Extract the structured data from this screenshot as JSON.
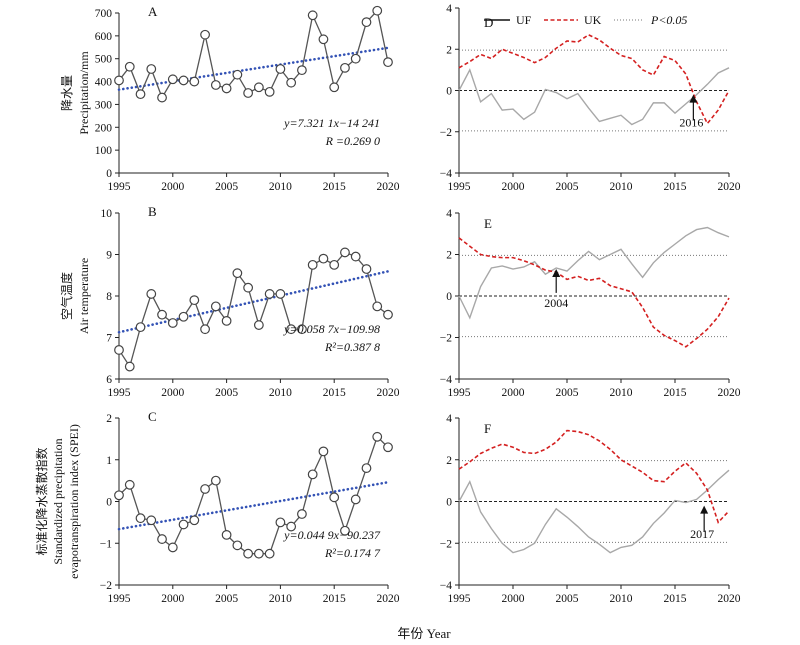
{
  "figure": {
    "common_xlabel": "年份 Year"
  },
  "chart_data": [
    {
      "id": "A",
      "type": "scatter",
      "letter": "A",
      "ylabel_cn": "降水量",
      "ylabel_en": "Precipitation/mm",
      "xlim": [
        1995,
        2020
      ],
      "ylim": [
        0,
        700
      ],
      "xticks": [
        1995,
        2000,
        2005,
        2010,
        2015,
        2020
      ],
      "yticks": [
        0,
        100,
        200,
        300,
        400,
        500,
        600,
        700
      ],
      "series": [
        {
          "x": [
            1995,
            1996,
            1997,
            1998,
            1999,
            2000,
            2001,
            2002,
            2003,
            2004,
            2005,
            2006,
            2007,
            2008,
            2009,
            2010,
            2011,
            2012,
            2013,
            2014,
            2015,
            2016,
            2017,
            2018,
            2019,
            2020
          ],
          "values": [
            405,
            465,
            345,
            455,
            330,
            410,
            405,
            400,
            605,
            385,
            370,
            430,
            350,
            375,
            355,
            455,
            395,
            450,
            690,
            585,
            375,
            460,
            500,
            660,
            710,
            485
          ]
        }
      ],
      "trend": {
        "slope": 7.3211,
        "intercept": -14241
      },
      "equation": "y=7.321 1x−14 241",
      "r_text": "R =0.269 0"
    },
    {
      "id": "B",
      "type": "scatter",
      "letter": "B",
      "ylabel_cn": "空气温度",
      "ylabel_en": "Air temperature",
      "xlim": [
        1995,
        2020
      ],
      "ylim": [
        6,
        10
      ],
      "xticks": [
        1995,
        2000,
        2005,
        2010,
        2015,
        2020
      ],
      "yticks": [
        6,
        7,
        8,
        9,
        10
      ],
      "series": [
        {
          "x": [
            1995,
            1996,
            1997,
            1998,
            1999,
            2000,
            2001,
            2002,
            2003,
            2004,
            2005,
            2006,
            2007,
            2008,
            2009,
            2010,
            2011,
            2012,
            2013,
            2014,
            2015,
            2016,
            2017,
            2018,
            2019,
            2020
          ],
          "values": [
            6.7,
            6.3,
            7.25,
            8.05,
            7.55,
            7.35,
            7.5,
            7.9,
            7.2,
            7.75,
            7.4,
            8.55,
            8.2,
            7.3,
            8.05,
            8.05,
            7.2,
            7.2,
            8.75,
            8.9,
            8.75,
            9.05,
            8.95,
            8.65,
            7.75,
            7.55
          ]
        }
      ],
      "trend": {
        "slope": 0.0587,
        "intercept": -109.98
      },
      "equation": "y=0.058 7x−109.98",
      "r_text": "R²=0.387 8"
    },
    {
      "id": "C",
      "type": "scatter",
      "letter": "C",
      "ylabel_cn": "标准化降水蒸散指数",
      "ylabel_en1": "Standardized precipitation",
      "ylabel_en2": "evapotranspiration index (SPEI)",
      "xlim": [
        1995,
        2020
      ],
      "ylim": [
        -2,
        2
      ],
      "xticks": [
        1995,
        2000,
        2005,
        2010,
        2015,
        2020
      ],
      "yticks": [
        -2,
        -1,
        0,
        1,
        2
      ],
      "series": [
        {
          "x": [
            1995,
            1996,
            1997,
            1998,
            1999,
            2000,
            2001,
            2002,
            2003,
            2004,
            2005,
            2006,
            2007,
            2008,
            2009,
            2010,
            2011,
            2012,
            2013,
            2014,
            2015,
            2016,
            2017,
            2018,
            2019,
            2020
          ],
          "values": [
            0.15,
            0.4,
            -0.4,
            -0.45,
            -0.9,
            -1.1,
            -0.55,
            -0.45,
            0.3,
            0.5,
            -0.8,
            -1.05,
            -1.25,
            -1.25,
            -1.25,
            -0.5,
            -0.6,
            -0.3,
            0.65,
            1.2,
            0.1,
            -0.7,
            0.05,
            0.8,
            1.55,
            1.3
          ]
        }
      ],
      "trend": {
        "slope": 0.0449,
        "intercept": -90.237
      },
      "equation": "y=0.044 9x−90.237",
      "r_text": "R²=0.174 7"
    },
    {
      "id": "D",
      "type": "line",
      "letter": "D",
      "legend": {
        "uf": "UF",
        "uk": "UK",
        "p": "P<0.05"
      },
      "xlim": [
        1995,
        2020
      ],
      "ylim": [
        -4,
        4
      ],
      "xticks": [
        1995,
        2000,
        2005,
        2010,
        2015,
        2020
      ],
      "yticks": [
        -4,
        -2,
        0,
        2,
        4
      ],
      "x": [
        1995,
        1996,
        1997,
        1998,
        1999,
        2000,
        2001,
        2002,
        2003,
        2004,
        2005,
        2006,
        2007,
        2008,
        2009,
        2010,
        2011,
        2012,
        2013,
        2014,
        2015,
        2016,
        2017,
        2018,
        2019,
        2020
      ],
      "series": [
        {
          "name": "UF",
          "values": [
            0.0,
            1.0,
            -0.55,
            -0.15,
            -0.95,
            -0.9,
            -1.4,
            -1.05,
            0.05,
            -0.1,
            -0.4,
            -0.15,
            -0.85,
            -1.5,
            -1.35,
            -1.2,
            -1.65,
            -1.4,
            -0.6,
            -0.6,
            -1.1,
            -0.65,
            -0.2,
            0.3,
            0.85,
            1.1
          ]
        },
        {
          "name": "UK",
          "values": [
            1.1,
            1.4,
            1.75,
            1.55,
            2.0,
            1.8,
            1.6,
            1.35,
            1.6,
            2.05,
            2.4,
            2.35,
            2.7,
            2.45,
            2.05,
            1.7,
            1.55,
            1.0,
            0.75,
            1.65,
            1.45,
            0.8,
            -0.55,
            -1.6,
            -0.95,
            0.0
          ]
        }
      ],
      "annotation": {
        "text": "2016",
        "year": 2016.7
      }
    },
    {
      "id": "E",
      "type": "line",
      "letter": "E",
      "xlim": [
        1995,
        2020
      ],
      "ylim": [
        -4,
        4
      ],
      "xticks": [
        1995,
        2000,
        2005,
        2010,
        2015,
        2020
      ],
      "yticks": [
        -4,
        -2,
        0,
        2,
        4
      ],
      "x": [
        1995,
        1996,
        1997,
        1998,
        1999,
        2000,
        2001,
        2002,
        2003,
        2004,
        2005,
        2006,
        2007,
        2008,
        2009,
        2010,
        2011,
        2012,
        2013,
        2014,
        2015,
        2016,
        2017,
        2018,
        2019,
        2020
      ],
      "series": [
        {
          "name": "UF",
          "values": [
            0.0,
            -1.05,
            0.45,
            1.35,
            1.45,
            1.3,
            1.4,
            1.65,
            1.05,
            1.35,
            1.2,
            1.7,
            2.15,
            1.75,
            2.0,
            2.25,
            1.55,
            0.9,
            1.6,
            2.1,
            2.5,
            2.9,
            3.2,
            3.3,
            3.05,
            2.85
          ]
        },
        {
          "name": "UK",
          "values": [
            2.8,
            2.4,
            2.0,
            1.9,
            1.85,
            1.85,
            1.7,
            1.5,
            1.25,
            1.15,
            0.8,
            0.95,
            0.75,
            0.85,
            0.5,
            0.35,
            0.2,
            -0.55,
            -1.5,
            -1.9,
            -2.15,
            -2.45,
            -2.05,
            -1.6,
            -1.0,
            -0.1
          ]
        }
      ],
      "annotation": {
        "text": "2004",
        "year": 2004.0
      }
    },
    {
      "id": "F",
      "type": "line",
      "letter": "F",
      "xlim": [
        1995,
        2020
      ],
      "ylim": [
        -4,
        4
      ],
      "xticks": [
        1995,
        2000,
        2005,
        2010,
        2015,
        2020
      ],
      "yticks": [
        -4,
        -2,
        0,
        2,
        4
      ],
      "x": [
        1995,
        1996,
        1997,
        1998,
        1999,
        2000,
        2001,
        2002,
        2003,
        2004,
        2005,
        2006,
        2007,
        2008,
        2009,
        2010,
        2011,
        2012,
        2013,
        2014,
        2015,
        2016,
        2017,
        2018,
        2019,
        2020
      ],
      "series": [
        {
          "name": "UF",
          "values": [
            0.0,
            0.95,
            -0.5,
            -1.3,
            -2.0,
            -2.45,
            -2.3,
            -2.0,
            -1.1,
            -0.35,
            -0.75,
            -1.2,
            -1.7,
            -2.05,
            -2.45,
            -2.2,
            -2.1,
            -1.7,
            -1.05,
            -0.55,
            0.05,
            -0.05,
            0.1,
            0.55,
            1.05,
            1.5
          ]
        },
        {
          "name": "UK",
          "values": [
            1.55,
            1.9,
            2.3,
            2.55,
            2.75,
            2.6,
            2.35,
            2.3,
            2.5,
            2.85,
            3.4,
            3.35,
            3.2,
            2.9,
            2.5,
            2.0,
            1.7,
            1.4,
            1.0,
            0.95,
            1.45,
            1.85,
            1.35,
            0.55,
            -1.0,
            -0.45
          ]
        }
      ],
      "annotation": {
        "text": "2017",
        "year": 2017.7
      }
    }
  ]
}
